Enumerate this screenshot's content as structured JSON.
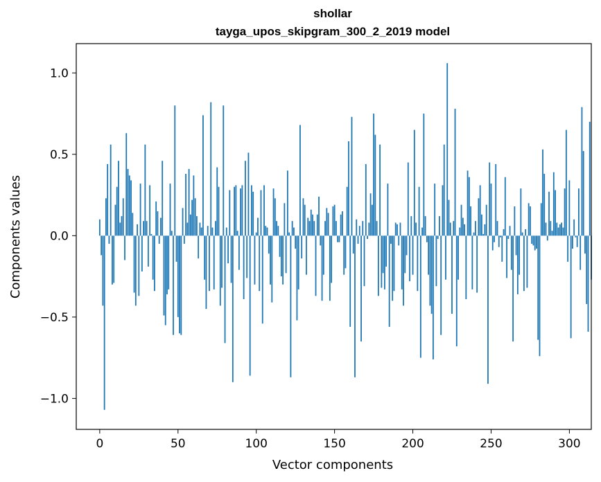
{
  "chart_data": {
    "type": "bar",
    "title": "shollar",
    "subtitle": "tayga_upos_skipgram_300_2_2019 model",
    "xlabel": "Vector components",
    "ylabel": "Components values",
    "xlim": [
      -15,
      314
    ],
    "ylim": [
      -1.19,
      1.18
    ],
    "xticks": [
      0,
      50,
      100,
      150,
      200,
      250,
      300
    ],
    "xtick_labels": [
      "0",
      "50",
      "100",
      "150",
      "200",
      "250",
      "300"
    ],
    "yticks": [
      -1.0,
      -0.5,
      0.0,
      0.5,
      1.0
    ],
    "ytick_labels": [
      "−1.0",
      "−0.5",
      "0.0",
      "0.5",
      "1.0"
    ],
    "grid": false,
    "legend": "none",
    "bar_color": "#1f77b4",
    "series": [
      {
        "values": [
          0.1,
          -0.12,
          -0.43,
          -1.07,
          0.23,
          0.44,
          -0.05,
          0.56,
          -0.3,
          -0.29,
          0.19,
          0.3,
          0.46,
          0.08,
          0.12,
          0.23,
          -0.15,
          0.63,
          0.41,
          0.37,
          0.34,
          0.14,
          -0.35,
          -0.43,
          0.07,
          -0.37,
          0.32,
          -0.22,
          0.09,
          0.56,
          0.09,
          -0.19,
          0.31,
          0.01,
          -0.27,
          -0.34,
          0.21,
          0.15,
          -0.05,
          0.11,
          0.46,
          -0.49,
          -0.55,
          -0.36,
          -0.33,
          0.32,
          0.03,
          -0.61,
          0.8,
          -0.16,
          -0.5,
          -0.6,
          -0.61,
          0.17,
          -0.05,
          0.38,
          0.08,
          0.41,
          0.13,
          0.22,
          0.37,
          0.23,
          0.12,
          -0.14,
          0.08,
          0.05,
          0.74,
          -0.27,
          -0.45,
          0.06,
          -0.34,
          0.82,
          0.05,
          -0.33,
          0.09,
          0.42,
          0.3,
          -0.43,
          -0.32,
          0.8,
          -0.66,
          0.05,
          -0.17,
          0.28,
          -0.29,
          -0.9,
          0.3,
          0.31,
          0.03,
          -0.21,
          0.29,
          0.31,
          -0.39,
          0.46,
          -0.26,
          0.51,
          -0.86,
          0.31,
          0.27,
          -0.3,
          0.02,
          0.11,
          -0.34,
          0.28,
          -0.54,
          0.31,
          0.06,
          0.05,
          -0.11,
          -0.3,
          -0.41,
          0.29,
          0.23,
          0.09,
          0.06,
          -0.13,
          -0.25,
          -0.3,
          0.2,
          -0.23,
          0.4,
          0.02,
          -0.87,
          0.09,
          0.05,
          -0.08,
          -0.52,
          -0.33,
          0.68,
          -0.14,
          0.23,
          0.19,
          -0.24,
          0.11,
          0.09,
          0.16,
          0.13,
          0.09,
          -0.37,
          0.13,
          0.24,
          -0.06,
          -0.4,
          -0.24,
          0.09,
          0.17,
          0.14,
          -0.4,
          -0.29,
          0.18,
          0.19,
          0.09,
          -0.04,
          -0.04,
          0.13,
          0.15,
          -0.24,
          -0.2,
          0.3,
          0.58,
          -0.56,
          0.73,
          -0.11,
          -0.87,
          0.1,
          -0.05,
          0.06,
          -0.65,
          0.09,
          -0.31,
          0.44,
          -0.02,
          0.08,
          0.26,
          0.19,
          0.75,
          0.62,
          0.09,
          -0.37,
          0.56,
          -0.32,
          -0.23,
          -0.33,
          -0.19,
          0.32,
          -0.56,
          -0.05,
          -0.4,
          -0.34,
          0.08,
          0.07,
          -0.06,
          0.08,
          -0.33,
          -0.43,
          -0.23,
          -0.12,
          0.45,
          -0.28,
          0.12,
          -0.24,
          0.65,
          0.08,
          -0.34,
          0.3,
          -0.75,
          0.05,
          0.75,
          0.12,
          -0.04,
          -0.24,
          -0.43,
          -0.48,
          -0.76,
          0.32,
          -0.31,
          -0.02,
          0.12,
          -0.61,
          0.31,
          0.56,
          -0.27,
          1.06,
          0.22,
          0.08,
          -0.48,
          0.09,
          0.78,
          -0.68,
          -0.27,
          0.05,
          0.19,
          0.11,
          0.07,
          -0.39,
          0.4,
          0.36,
          0.18,
          -0.33,
          0.02,
          0.09,
          -0.35,
          0.23,
          0.31,
          0.13,
          0.01,
          0.07,
          0.19,
          -0.91,
          0.45,
          0.32,
          -0.09,
          -0.04,
          0.44,
          0.09,
          -0.07,
          -0.01,
          -0.16,
          0.04,
          0.36,
          -0.26,
          -0.02,
          0.06,
          -0.21,
          -0.65,
          0.18,
          -0.12,
          -0.36,
          -0.24,
          0.29,
          0.02,
          -0.34,
          0.04,
          -0.32,
          0.2,
          0.18,
          -0.05,
          -0.06,
          -0.09,
          -0.08,
          -0.64,
          -0.74,
          0.2,
          0.53,
          0.38,
          0.08,
          -0.03,
          0.27,
          0.09,
          0.03,
          0.39,
          0.28,
          0.08,
          0.05,
          0.07,
          0.08,
          0.05,
          0.29,
          0.65,
          -0.16,
          0.34,
          -0.63,
          -0.08,
          0.1,
          -0.01,
          -0.07,
          0.29,
          -0.21,
          0.79,
          0.52,
          -0.11,
          -0.42,
          -0.59,
          0.7,
          -0.27
        ]
      }
    ]
  }
}
